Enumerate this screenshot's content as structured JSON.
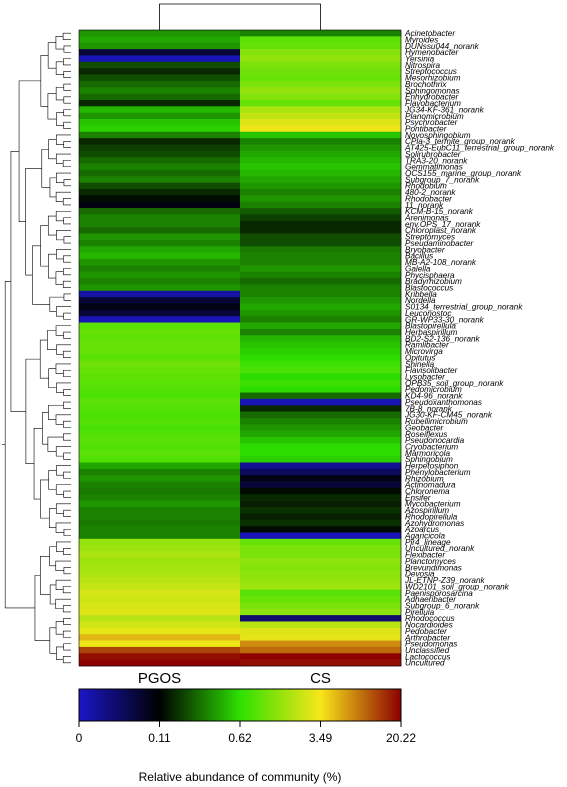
{
  "chart_data": {
    "type": "heatmap",
    "columns": [
      "PGOS",
      "CS"
    ],
    "rows": [
      {
        "label": "Acinetobacter",
        "values": [
          0.35,
          0.3
        ]
      },
      {
        "label": "Myroides",
        "values": [
          0.4,
          0.9
        ]
      },
      {
        "label": "DUNssu044_norank",
        "values": [
          0.35,
          1.0
        ]
      },
      {
        "label": "Hymenobacter",
        "values": [
          0.08,
          1.3
        ]
      },
      {
        "label": "Yersinia",
        "values": [
          0.01,
          1.5
        ]
      },
      {
        "label": "Nitrospira",
        "values": [
          0.2,
          1.2
        ]
      },
      {
        "label": "Streptococcus",
        "values": [
          0.15,
          1.1
        ]
      },
      {
        "label": "Mesorhizobium",
        "values": [
          0.2,
          1.0
        ]
      },
      {
        "label": "Brochothrix",
        "values": [
          0.25,
          1.2
        ]
      },
      {
        "label": "Sphingomonas",
        "values": [
          0.3,
          1.5
        ]
      },
      {
        "label": "Enhydrobacter",
        "values": [
          0.25,
          1.3
        ]
      },
      {
        "label": "Flavobacterium",
        "values": [
          0.15,
          1.0
        ]
      },
      {
        "label": "JG34-KF-361_norank",
        "values": [
          0.45,
          1.8
        ]
      },
      {
        "label": "Planomicrobium",
        "values": [
          0.35,
          2.2
        ]
      },
      {
        "label": "Psychrobacter",
        "values": [
          0.5,
          2.8
        ]
      },
      {
        "label": "Pontibacter",
        "values": [
          0.55,
          3.2
        ]
      },
      {
        "label": "Novosphingobium",
        "values": [
          0.3,
          0.5
        ]
      },
      {
        "label": "CPla-3_termite_group_norank",
        "values": [
          0.15,
          0.3
        ]
      },
      {
        "label": "AT425-EubC11_terrestrial_group_norank",
        "values": [
          0.18,
          0.35
        ]
      },
      {
        "label": "Solirubrobacter",
        "values": [
          0.2,
          0.4
        ]
      },
      {
        "label": "TRA3-20_norank",
        "values": [
          0.25,
          0.45
        ]
      },
      {
        "label": "Gemmatimonas",
        "values": [
          0.3,
          0.5
        ]
      },
      {
        "label": "OCS155_marine_group_norank",
        "values": [
          0.25,
          0.45
        ]
      },
      {
        "label": "Subgroup_7_norank",
        "values": [
          0.3,
          0.4
        ]
      },
      {
        "label": "Rhodobium",
        "values": [
          0.2,
          0.35
        ]
      },
      {
        "label": "480-2_norank",
        "values": [
          0.15,
          0.3
        ]
      },
      {
        "label": "Rhodobacter",
        "values": [
          0.12,
          0.35
        ]
      },
      {
        "label": "11_norank",
        "values": [
          0.1,
          0.3
        ]
      },
      {
        "label": "KCM-B-15_norank",
        "values": [
          0.25,
          0.22
        ]
      },
      {
        "label": "Arenimonas",
        "values": [
          0.3,
          0.18
        ]
      },
      {
        "label": "env.OPS_17_norank",
        "values": [
          0.3,
          0.15
        ]
      },
      {
        "label": "Chloroplast_norank",
        "values": [
          0.25,
          0.15
        ]
      },
      {
        "label": "Streptomyces",
        "values": [
          0.35,
          0.2
        ]
      },
      {
        "label": "Pseudaminobacter",
        "values": [
          0.3,
          0.2
        ]
      },
      {
        "label": "Bryobacter",
        "values": [
          0.4,
          0.28
        ]
      },
      {
        "label": "Bacillus",
        "values": [
          0.45,
          0.3
        ]
      },
      {
        "label": "MB-A2-108_norank",
        "values": [
          0.35,
          0.3
        ]
      },
      {
        "label": "Galella",
        "values": [
          0.3,
          0.35
        ]
      },
      {
        "label": "Phycisphaera",
        "values": [
          0.35,
          0.3
        ]
      },
      {
        "label": "Bradyrhizobium",
        "values": [
          0.3,
          0.25
        ]
      },
      {
        "label": "Blastococcus",
        "values": [
          0.35,
          0.3
        ]
      },
      {
        "label": "Kribbella",
        "values": [
          0.02,
          0.3
        ]
      },
      {
        "label": "Nordella",
        "values": [
          0.08,
          0.35
        ]
      },
      {
        "label": "S0134_terrestrial_group_norank",
        "values": [
          0.1,
          0.4
        ]
      },
      {
        "label": "Leuconostoc",
        "values": [
          0.08,
          0.35
        ]
      },
      {
        "label": "GR-WP33-30_norank",
        "values": [
          0.01,
          0.3
        ]
      },
      {
        "label": "Blastopirellula",
        "values": [
          0.9,
          0.4
        ]
      },
      {
        "label": "Herbaspirillum",
        "values": [
          1.0,
          0.3
        ]
      },
      {
        "label": "BD2-S2-136_norank",
        "values": [
          0.95,
          0.45
        ]
      },
      {
        "label": "Ramlibacter",
        "values": [
          1.0,
          0.5
        ]
      },
      {
        "label": "Microvirga",
        "values": [
          1.0,
          0.55
        ]
      },
      {
        "label": "Opitutus",
        "values": [
          0.9,
          0.6
        ]
      },
      {
        "label": "Shinella",
        "values": [
          1.1,
          0.7
        ]
      },
      {
        "label": "Flavisolibacter",
        "values": [
          1.0,
          0.8
        ]
      },
      {
        "label": "Lysobacter",
        "values": [
          0.95,
          0.6
        ]
      },
      {
        "label": "OPB35_soil_group_norank",
        "values": [
          0.9,
          0.7
        ]
      },
      {
        "label": "Pedomicrobium",
        "values": [
          0.85,
          0.6
        ]
      },
      {
        "label": "KD4-96_norank",
        "values": [
          0.8,
          0.25
        ]
      },
      {
        "label": "Pseudoxanthomonas",
        "values": [
          0.9,
          0.01
        ]
      },
      {
        "label": "7B-8_norank",
        "values": [
          0.85,
          0.15
        ]
      },
      {
        "label": "JG30-KF-CM45_norank",
        "values": [
          0.8,
          0.25
        ]
      },
      {
        "label": "Rubellimicrobium",
        "values": [
          0.85,
          0.3
        ]
      },
      {
        "label": "Geobacter",
        "values": [
          0.8,
          0.35
        ]
      },
      {
        "label": "Roseiflexus",
        "values": [
          0.85,
          0.4
        ]
      },
      {
        "label": "Pseudonocardia",
        "values": [
          0.9,
          0.5
        ]
      },
      {
        "label": "Cryobacterium",
        "values": [
          0.85,
          0.6
        ]
      },
      {
        "label": "Marmoricola",
        "values": [
          0.9,
          0.6
        ]
      },
      {
        "label": "Sphingobium",
        "values": [
          0.85,
          0.55
        ]
      },
      {
        "label": "Herpetosiphon",
        "values": [
          0.4,
          0.03
        ]
      },
      {
        "label": "Phenylobacterium",
        "values": [
          0.3,
          0.06
        ]
      },
      {
        "label": "Rhizobium",
        "values": [
          0.35,
          0.1
        ]
      },
      {
        "label": "Actinomadura",
        "values": [
          0.3,
          0.08
        ]
      },
      {
        "label": "Chloronema",
        "values": [
          0.28,
          0.12
        ]
      },
      {
        "label": "Ensifer",
        "values": [
          0.3,
          0.15
        ]
      },
      {
        "label": "Mycobacterium",
        "values": [
          0.35,
          0.14
        ]
      },
      {
        "label": "Azospirillum",
        "values": [
          0.3,
          0.16
        ]
      },
      {
        "label": "Rhodopirellula",
        "values": [
          0.3,
          0.14
        ]
      },
      {
        "label": "Azohydromonas",
        "values": [
          0.28,
          0.16
        ]
      },
      {
        "label": "Azoarcus",
        "values": [
          0.3,
          0.12
        ]
      },
      {
        "label": "Agaricicola",
        "values": [
          0.3,
          0.01
        ]
      },
      {
        "label": "Pir4_lineage",
        "values": [
          1.5,
          1.0
        ]
      },
      {
        "label": "Uncultured_norank",
        "values": [
          1.6,
          1.2
        ]
      },
      {
        "label": "Flexibacter",
        "values": [
          1.8,
          1.2
        ]
      },
      {
        "label": "Planctomyces",
        "values": [
          1.6,
          1.4
        ]
      },
      {
        "label": "Brevundimonas",
        "values": [
          1.7,
          1.3
        ]
      },
      {
        "label": "Devosia",
        "values": [
          1.8,
          1.4
        ]
      },
      {
        "label": "JL-ETNP-Z39_norank",
        "values": [
          2.0,
          1.5
        ]
      },
      {
        "label": "WD2101_soil_group_norank",
        "values": [
          2.3,
          1.6
        ]
      },
      {
        "label": "Paenisporosarcina",
        "values": [
          2.6,
          0.9
        ]
      },
      {
        "label": "Adhaeribacter",
        "values": [
          2.4,
          1.0
        ]
      },
      {
        "label": "Subgroup_6_norank",
        "values": [
          2.6,
          1.2
        ]
      },
      {
        "label": "Pirellula",
        "values": [
          2.8,
          1.4
        ]
      },
      {
        "label": "Rhodococcus",
        "values": [
          2.0,
          0.05
        ]
      },
      {
        "label": "Nocardioides",
        "values": [
          2.5,
          2.0
        ]
      },
      {
        "label": "Pedobacter",
        "values": [
          3.0,
          2.8
        ]
      },
      {
        "label": "Arthrobacter",
        "values": [
          5.0,
          3.0
        ]
      },
      {
        "label": "Pseudomonas",
        "values": [
          3.2,
          7.0
        ]
      },
      {
        "label": "Unclassified",
        "values": [
          12.0,
          9.0
        ]
      },
      {
        "label": "Lactococcus",
        "values": [
          18.0,
          20.0
        ]
      },
      {
        "label": "Uncultured",
        "values": [
          20.0,
          18.0
        ]
      }
    ],
    "color_scale": {
      "ticks": [
        "0",
        "0.11",
        "0.62",
        "3.49",
        "20.22"
      ],
      "colors": [
        "#1a16c8",
        "#000000",
        "#2ee000",
        "#f8e61a",
        "#8b0000"
      ],
      "title": "Relative abundance of community (%)"
    }
  }
}
